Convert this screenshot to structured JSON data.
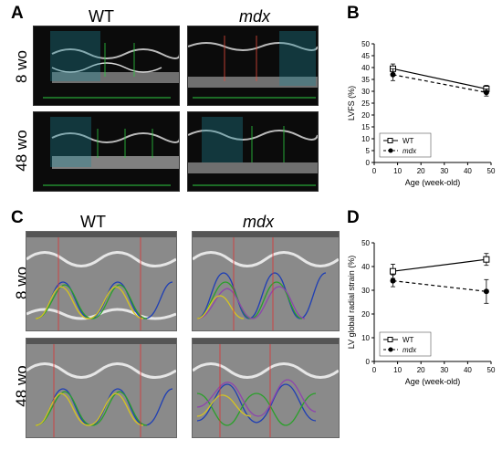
{
  "panels": {
    "A": {
      "letter": "A",
      "col_wt": "WT",
      "col_mdx": "mdx",
      "row1": "8 wo",
      "row2": "48 wo"
    },
    "B": {
      "letter": "B"
    },
    "C": {
      "letter": "C",
      "col_wt": "WT",
      "col_mdx": "mdx",
      "row1": "8 wo",
      "row2": "48 wo"
    },
    "D": {
      "letter": "D"
    }
  },
  "chart_data": [
    {
      "panel": "B",
      "type": "line",
      "ylabel": "LVFS (%)",
      "xlabel": "Age (week-old)",
      "xlim": [
        0,
        50
      ],
      "ylim": [
        0,
        50
      ],
      "xticks": [
        0,
        10,
        20,
        30,
        40,
        50
      ],
      "yticks": [
        0,
        5,
        10,
        15,
        20,
        25,
        30,
        35,
        40,
        45,
        50
      ],
      "legend_position": "bottom-left",
      "series": [
        {
          "name": "WT",
          "style": "solid",
          "marker": "open-square",
          "x": [
            8,
            48
          ],
          "y": [
            39.5,
            31
          ],
          "err": [
            2,
            1.5
          ]
        },
        {
          "name": "mdx",
          "style": "dashed",
          "marker": "filled-circle",
          "x": [
            8,
            48
          ],
          "y": [
            37,
            29.5
          ],
          "err": [
            2.5,
            1.5
          ]
        }
      ]
    },
    {
      "panel": "D",
      "type": "line",
      "ylabel": "LV global radial strain (%)",
      "xlabel": "Age (week-old)",
      "xlim": [
        0,
        50
      ],
      "ylim": [
        0,
        50
      ],
      "xticks": [
        0,
        10,
        20,
        30,
        40,
        50
      ],
      "yticks": [
        0,
        10,
        20,
        30,
        40,
        50
      ],
      "legend_position": "bottom-left",
      "series": [
        {
          "name": "WT",
          "style": "solid",
          "marker": "open-square",
          "x": [
            8,
            48
          ],
          "y": [
            38,
            43
          ],
          "err": [
            3,
            2.5
          ]
        },
        {
          "name": "mdx",
          "style": "dashed",
          "marker": "filled-circle",
          "x": [
            8,
            48
          ],
          "y": [
            34,
            29.5
          ],
          "err": [
            2.5,
            5
          ]
        }
      ]
    }
  ]
}
